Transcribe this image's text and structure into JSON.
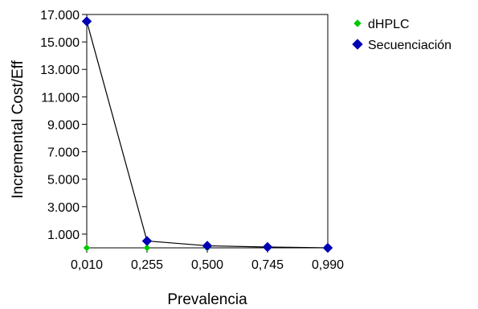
{
  "chart_data": {
    "type": "line",
    "xlabel": "Prevalencia",
    "ylabel": "Incremental Cost/Eff",
    "x": [
      0.01,
      0.255,
      0.5,
      0.745,
      0.99
    ],
    "x_tick_labels": [
      "0,010",
      "0,255",
      "0,500",
      "0,745",
      "0,990"
    ],
    "y_tick_values": [
      1000,
      3000,
      5000,
      7000,
      9000,
      11000,
      13000,
      15000,
      17000
    ],
    "y_tick_labels": [
      "1.000",
      "3.000",
      "5.000",
      "7.000",
      "9.000",
      "11.000",
      "13.000",
      "15.000",
      "17.000"
    ],
    "ylim": [
      0,
      17000
    ],
    "xlim": [
      0.01,
      0.99
    ],
    "grid": false,
    "legend_position": "right",
    "series": [
      {
        "name": "dHPLC",
        "color": "#00c800",
        "marker": "diamond",
        "y": [
          0,
          0,
          0,
          0,
          0
        ],
        "connected": false
      },
      {
        "name": "Secuenciación",
        "color": "#0000b4",
        "marker": "diamond",
        "y": [
          16500,
          500,
          150,
          60,
          0
        ],
        "connected": true
      }
    ]
  }
}
